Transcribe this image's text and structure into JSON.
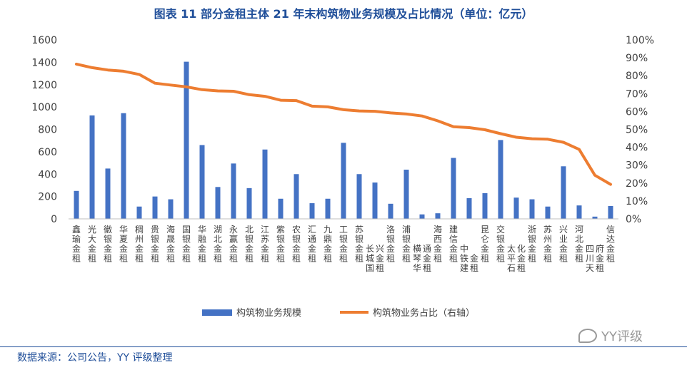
{
  "title": "图表 11 部分金租主体 21 年末构筑物业务规模及占比情况（单位：亿元）",
  "source": "数据来源：公司公告，YY 评级整理",
  "watermark": "YY评级",
  "colors": {
    "bar": "#4472c4",
    "line": "#ed7d31",
    "title": "#1f4e99",
    "axis_text": "#404040"
  },
  "chart_data": {
    "type": "bar+line",
    "categories": [
      "鑫瑜金租",
      "光大金租",
      "徽银金租",
      "华夏金租",
      "稠州金租",
      "贵银金租",
      "海晟金租",
      "国银金租",
      "华融金租",
      "湖北金租",
      "永赢金租",
      "北银金租",
      "江苏金租",
      "紫银金租",
      "农银金租",
      "汇通金租",
      "九鼎金租",
      "工银金租",
      "苏银金租",
      "长城国兴金租",
      "洛银金租",
      "浦银金租",
      "横琴华通金租",
      "海西金租",
      "建信金租",
      "中铁建金租",
      "昆仑金租",
      "交银金租",
      "太平石化金租",
      "浙银金租",
      "苏州金租",
      "兴业金租",
      "河北金租",
      "四川天府金租",
      "信达金租"
    ],
    "series": [
      {
        "name": "构筑物业务规模",
        "type": "bar",
        "axis": "left",
        "values": [
          250,
          925,
          450,
          945,
          110,
          200,
          175,
          1405,
          660,
          285,
          495,
          275,
          620,
          180,
          400,
          140,
          180,
          680,
          400,
          325,
          135,
          440,
          40,
          50,
          545,
          185,
          230,
          705,
          190,
          175,
          110,
          470,
          120,
          20,
          115
        ]
      },
      {
        "name": "构筑物业务占比（右轴）",
        "type": "line",
        "axis": "right",
        "values": [
          86.5,
          84.5,
          83.2,
          82.5,
          80.7,
          75.8,
          74.8,
          73.8,
          72.2,
          71.5,
          71.3,
          69.4,
          68.5,
          66.3,
          66.1,
          63.0,
          62.6,
          61.0,
          60.3,
          60.1,
          59.2,
          58.6,
          57.5,
          54.8,
          51.5,
          51.0,
          49.8,
          47.6,
          45.6,
          44.8,
          44.5,
          42.8,
          38.8,
          24.4,
          19.3
        ]
      }
    ],
    "left_axis": {
      "min": 0,
      "max": 1600,
      "ticks": [
        "0",
        "200",
        "400",
        "600",
        "800",
        "1000",
        "1200",
        "1400",
        "1600"
      ]
    },
    "right_axis": {
      "min": 0,
      "max": 100,
      "ticks": [
        "0%",
        "10%",
        "20%",
        "30%",
        "40%",
        "50%",
        "60%",
        "70%",
        "80%",
        "90%",
        "100%"
      ]
    },
    "legend_position": "bottom",
    "grid": false
  }
}
